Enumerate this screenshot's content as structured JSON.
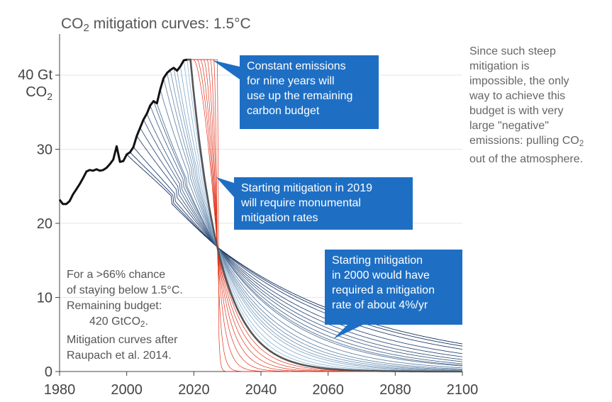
{
  "title": {
    "prefix": "CO",
    "sub": "2",
    "suffix": " mitigation curves: 1.5°C"
  },
  "side_note": {
    "line1": "Since such steep",
    "line2": "mitigation is",
    "line3": "impossible, the only",
    "line4": "way to achieve this",
    "line5": "budget is with very",
    "line6": "large \"negative\"",
    "line7_prefix": "emissions: pulling CO",
    "line7_sub": "2",
    "line8": "out of the atmosphere."
  },
  "left_note": {
    "line1": "For a >66% chance",
    "line2": "of staying below 1.5°C.",
    "line3": "Remaining budget:",
    "line4_prefix": "420 GtCO",
    "line4_sub": "2",
    "line4_suffix": ".",
    "line5": "Mitigation curves after",
    "line6": "Raupach et al. 2014."
  },
  "callouts": {
    "c1": {
      "line1": "Constant emissions",
      "line2": "for nine years will",
      "line3": "use up the remaining",
      "line4": "carbon budget"
    },
    "c2": {
      "line1": "Starting mitigation in 2019",
      "line2": "will require monumental",
      "line3": "mitigation rates"
    },
    "c3": {
      "line1": "Starting mitigation",
      "line2": "in 2000 would have",
      "line3": "required a mitigation",
      "line4": "rate of about 4%/yr"
    }
  },
  "colors": {
    "historical": "#111111",
    "central_curve": "#555555",
    "early_start_dark": "#15305e",
    "early_start_light": "#a8cce6",
    "late_start_red": "#e0301a",
    "callout_bg": "#1e6fc4",
    "grid": "#e6e6e6"
  },
  "chart_data": {
    "type": "line",
    "title": "CO2 mitigation curves: 1.5°C",
    "xlabel": "",
    "ylabel": "",
    "xlim": [
      1980,
      2100
    ],
    "ylim": [
      0,
      45
    ],
    "x_ticks": [
      1980,
      2000,
      2020,
      2040,
      2060,
      2080,
      2100
    ],
    "y_ticks": [
      {
        "value": 0,
        "label": "0"
      },
      {
        "value": 10,
        "label": "10"
      },
      {
        "value": 20,
        "label": "20"
      },
      {
        "value": 30,
        "label": "30"
      },
      {
        "value": 40,
        "label": "40 Gt",
        "label2": "CO",
        "label2_sub": "2"
      }
    ],
    "grid": "horizontal",
    "historical": {
      "x": [
        1980,
        1981,
        1982,
        1983,
        1984,
        1985,
        1986,
        1987,
        1988,
        1989,
        1990,
        1991,
        1992,
        1993,
        1994,
        1995,
        1996,
        1997,
        1998,
        1999,
        2000,
        2001,
        2002,
        2003,
        2004,
        2005,
        2006,
        2007,
        2008,
        2009,
        2010,
        2011,
        2012,
        2013,
        2014,
        2015,
        2016,
        2017,
        2018
      ],
      "y": [
        23.2,
        22.6,
        22.6,
        23.0,
        23.9,
        24.6,
        25.3,
        26.1,
        27.0,
        27.2,
        27.1,
        27.3,
        27.1,
        27.2,
        27.5,
        28.0,
        28.6,
        30.4,
        28.3,
        28.4,
        29.3,
        29.6,
        30.3,
        31.8,
        32.9,
        34.0,
        34.8,
        35.9,
        36.5,
        36.2,
        38.1,
        39.6,
        40.3,
        40.7,
        41.0,
        40.6,
        41.2,
        42.0,
        42.1
      ]
    },
    "mitigation_start_years": [
      2000,
      2001,
      2002,
      2003,
      2004,
      2005,
      2006,
      2007,
      2008,
      2009,
      2010,
      2011,
      2012,
      2013,
      2014,
      2015,
      2016,
      2017,
      2018,
      2019,
      2020,
      2021,
      2022,
      2023,
      2024,
      2025,
      2026,
      2027
    ],
    "highlighted_start_year": 2019,
    "constant_emissions_value": 42.1,
    "convergence_point": {
      "x": 2027,
      "y": 16.8
    },
    "budget_exhausted_year": 2027
  }
}
